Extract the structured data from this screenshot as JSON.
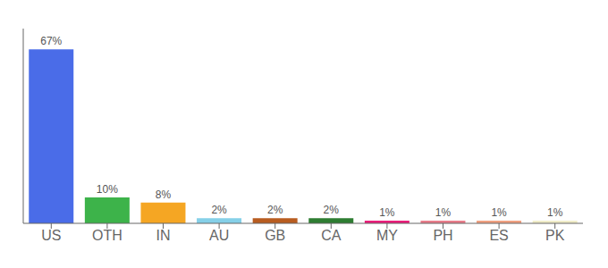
{
  "chart_data": {
    "type": "bar",
    "categories": [
      "US",
      "OTH",
      "IN",
      "AU",
      "GB",
      "CA",
      "MY",
      "PH",
      "ES",
      "PK"
    ],
    "values": [
      67,
      10,
      8,
      2,
      2,
      2,
      1,
      1,
      1,
      1
    ],
    "value_labels": [
      "67%",
      "10%",
      "8%",
      "2%",
      "2%",
      "2%",
      "1%",
      "1%",
      "1%",
      "1%"
    ],
    "colors": [
      "#4a6ce8",
      "#3db34a",
      "#f5a623",
      "#85d0e8",
      "#b85c20",
      "#2e7d32",
      "#e91e7a",
      "#e87d8a",
      "#f0a080",
      "#f0ecc8"
    ],
    "ylim": [
      0,
      75
    ],
    "data_labels": true,
    "tick_labels": "x",
    "grid": false
  }
}
